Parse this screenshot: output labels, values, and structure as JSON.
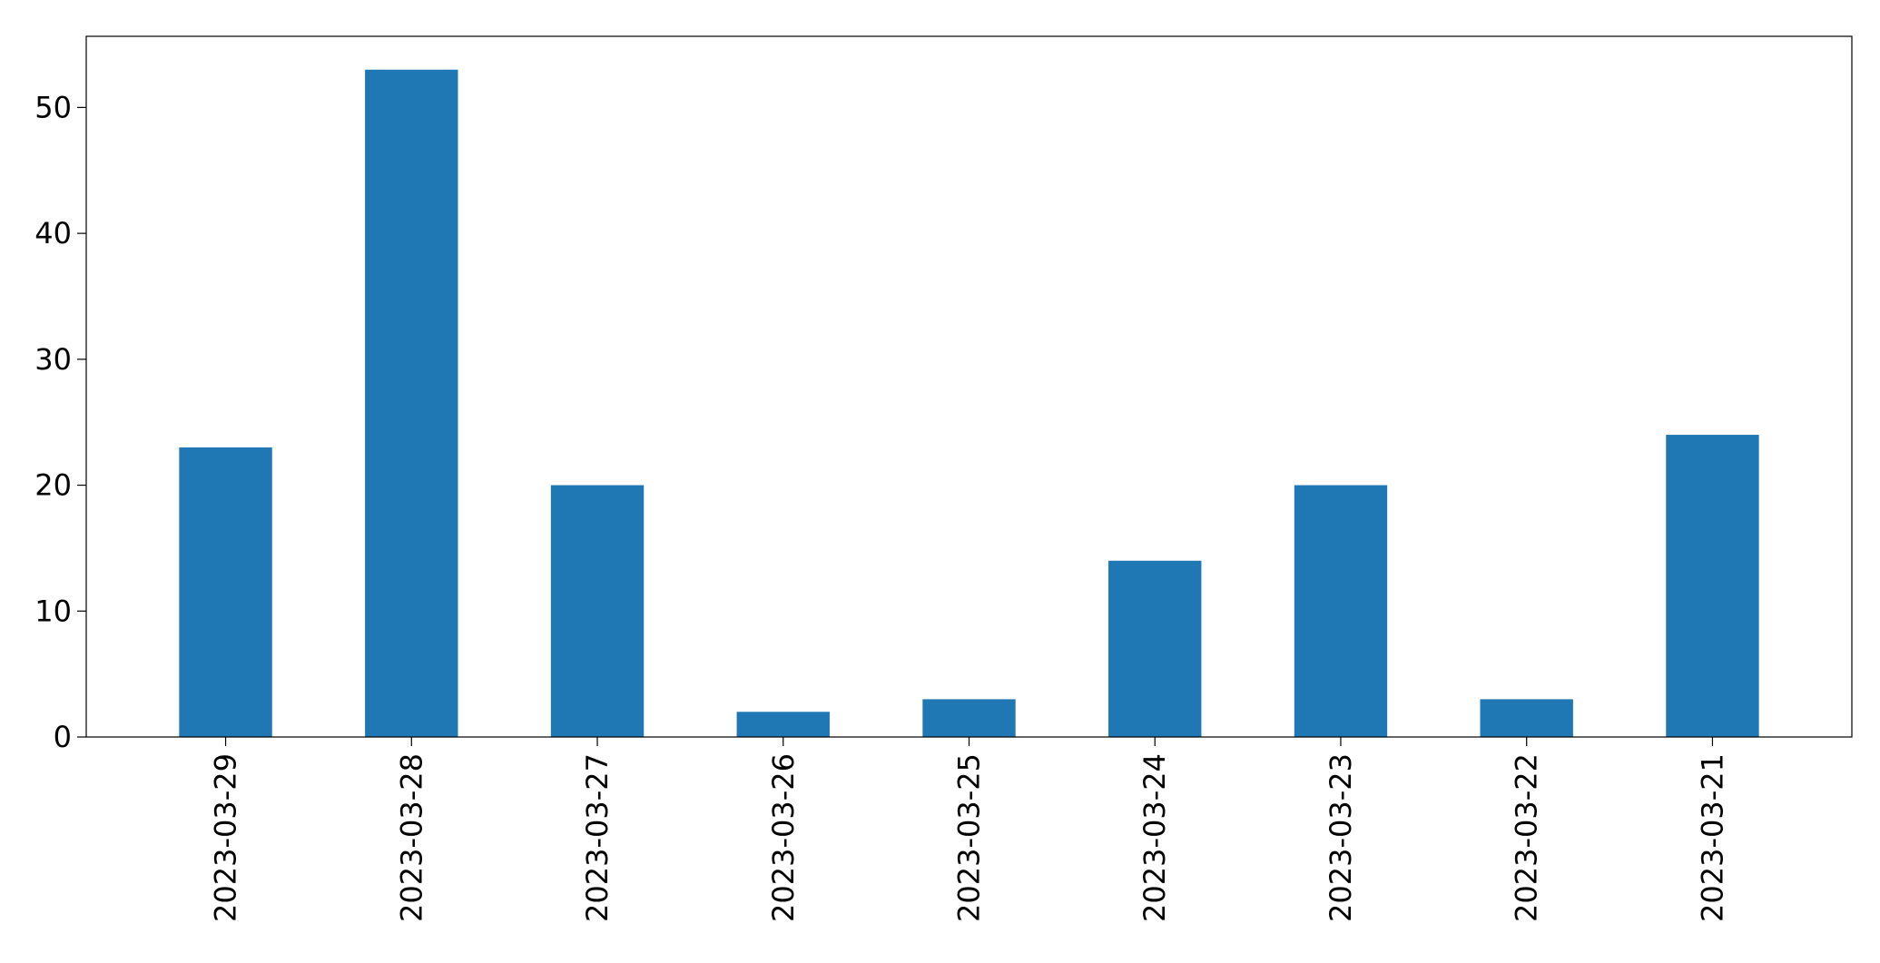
{
  "chart_data": {
    "type": "bar",
    "title": "",
    "xlabel": "",
    "ylabel": "",
    "categories": [
      "2023-03-29",
      "2023-03-28",
      "2023-03-27",
      "2023-03-26",
      "2023-03-25",
      "2023-03-24",
      "2023-03-23",
      "2023-03-22",
      "2023-03-21"
    ],
    "values": [
      23,
      53,
      20,
      2,
      3,
      14,
      20,
      3,
      24
    ],
    "ylim": [
      0,
      55.65
    ],
    "yticks": [
      0,
      10,
      20,
      30,
      40,
      50
    ],
    "grid": false,
    "legend": "none",
    "bar_color": "#1f77b4",
    "axis_color": "#000000"
  }
}
